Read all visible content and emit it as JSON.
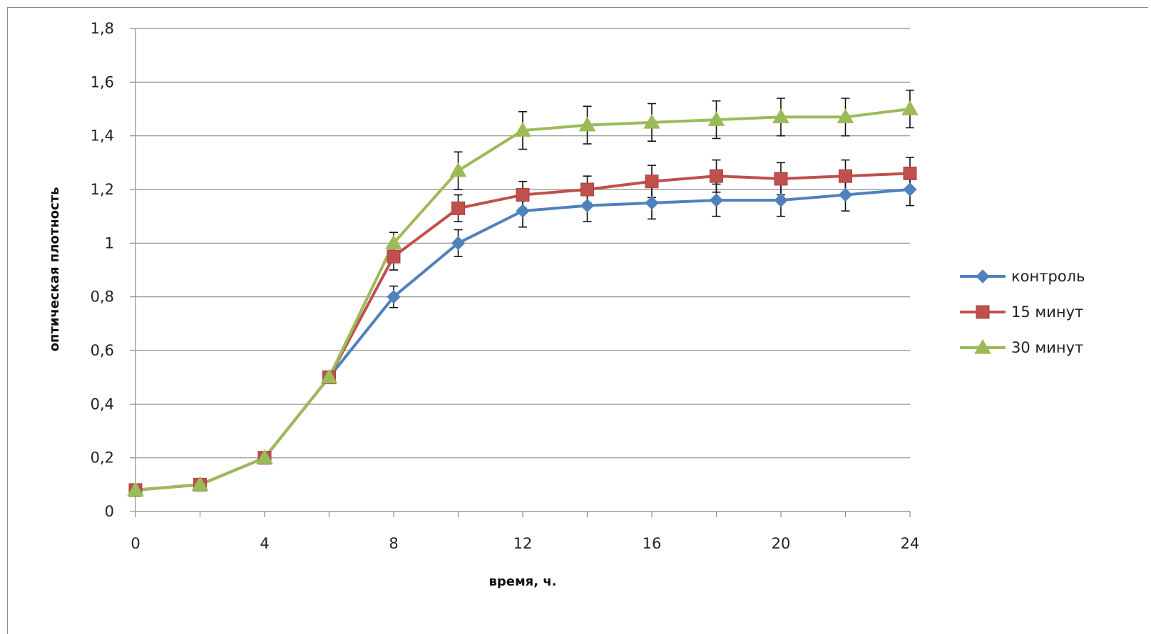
{
  "chart_data": {
    "type": "line",
    "xlabel": "время, ч.",
    "ylabel": "оптическая  плотность",
    "xlim": [
      0,
      24
    ],
    "ylim": [
      0,
      1.8
    ],
    "xticks": [
      0,
      4,
      8,
      12,
      16,
      20,
      24
    ],
    "xtick_labels": [
      "0",
      "4",
      "8",
      "12",
      "16",
      "20",
      "24"
    ],
    "yticks": [
      0,
      0.2,
      0.4,
      0.6,
      0.8,
      1,
      1.2,
      1.4,
      1.6,
      1.8
    ],
    "ytick_labels": [
      "0",
      "0,2",
      "0,4",
      "0,6",
      "0,8",
      "1",
      "1,2",
      "1,4",
      "1,6",
      "1,8"
    ],
    "grid": "horizontal",
    "legend_position": "right",
    "x": [
      0,
      2,
      4,
      6,
      8,
      10,
      12,
      14,
      16,
      18,
      20,
      22,
      24
    ],
    "series": [
      {
        "name": "контроль",
        "color": "#4f81bd",
        "marker": "diamond",
        "values": [
          0.08,
          0.1,
          0.2,
          0.5,
          0.8,
          1.0,
          1.12,
          1.14,
          1.15,
          1.16,
          1.16,
          1.18,
          1.2
        ],
        "errors": [
          0,
          0,
          0,
          0,
          0.04,
          0.05,
          0.06,
          0.06,
          0.06,
          0.06,
          0.06,
          0.06,
          0.06
        ]
      },
      {
        "name": "15 минут",
        "color": "#c0504d",
        "marker": "square",
        "values": [
          0.08,
          0.1,
          0.2,
          0.5,
          0.95,
          1.13,
          1.18,
          1.2,
          1.23,
          1.25,
          1.24,
          1.25,
          1.26
        ],
        "errors": [
          0,
          0,
          0,
          0,
          0.05,
          0.05,
          0.05,
          0.05,
          0.06,
          0.06,
          0.06,
          0.06,
          0.06
        ]
      },
      {
        "name": "30 минут",
        "color": "#9bbb59",
        "marker": "triangle",
        "values": [
          0.08,
          0.1,
          0.2,
          0.5,
          1.0,
          1.27,
          1.42,
          1.44,
          1.45,
          1.46,
          1.47,
          1.47,
          1.5
        ],
        "errors": [
          0,
          0,
          0,
          0,
          0.04,
          0.07,
          0.07,
          0.07,
          0.07,
          0.07,
          0.07,
          0.07,
          0.07
        ]
      }
    ]
  }
}
